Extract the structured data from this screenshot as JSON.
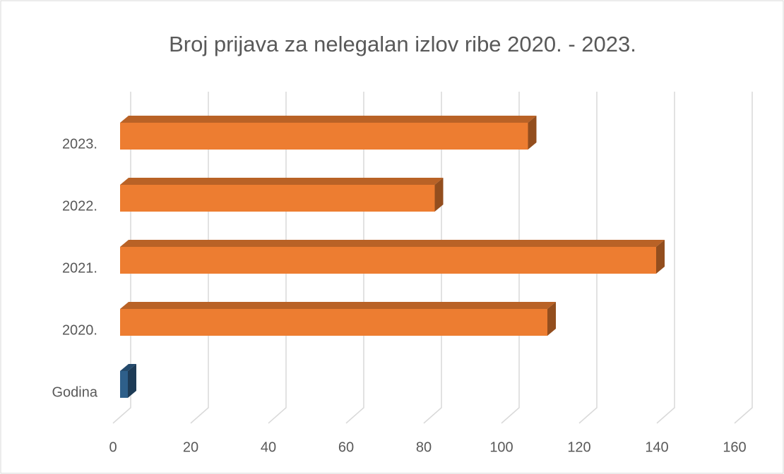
{
  "chart_data": {
    "type": "bar3d_horizontal",
    "title": "Broj prijava za nelegalan izlov ribe 2020. - 2023.",
    "categories": [
      "Godina",
      "2020.",
      "2021.",
      "2022.",
      "2023."
    ],
    "values": [
      2,
      110,
      138,
      81,
      105
    ],
    "colors": [
      "#2e5f8a",
      "#ed7d31",
      "#ed7d31",
      "#ed7d31",
      "#ed7d31"
    ],
    "xlim": [
      0,
      160
    ],
    "xticks": [
      0,
      20,
      40,
      60,
      80,
      100,
      120,
      140,
      160
    ],
    "grid": true
  }
}
